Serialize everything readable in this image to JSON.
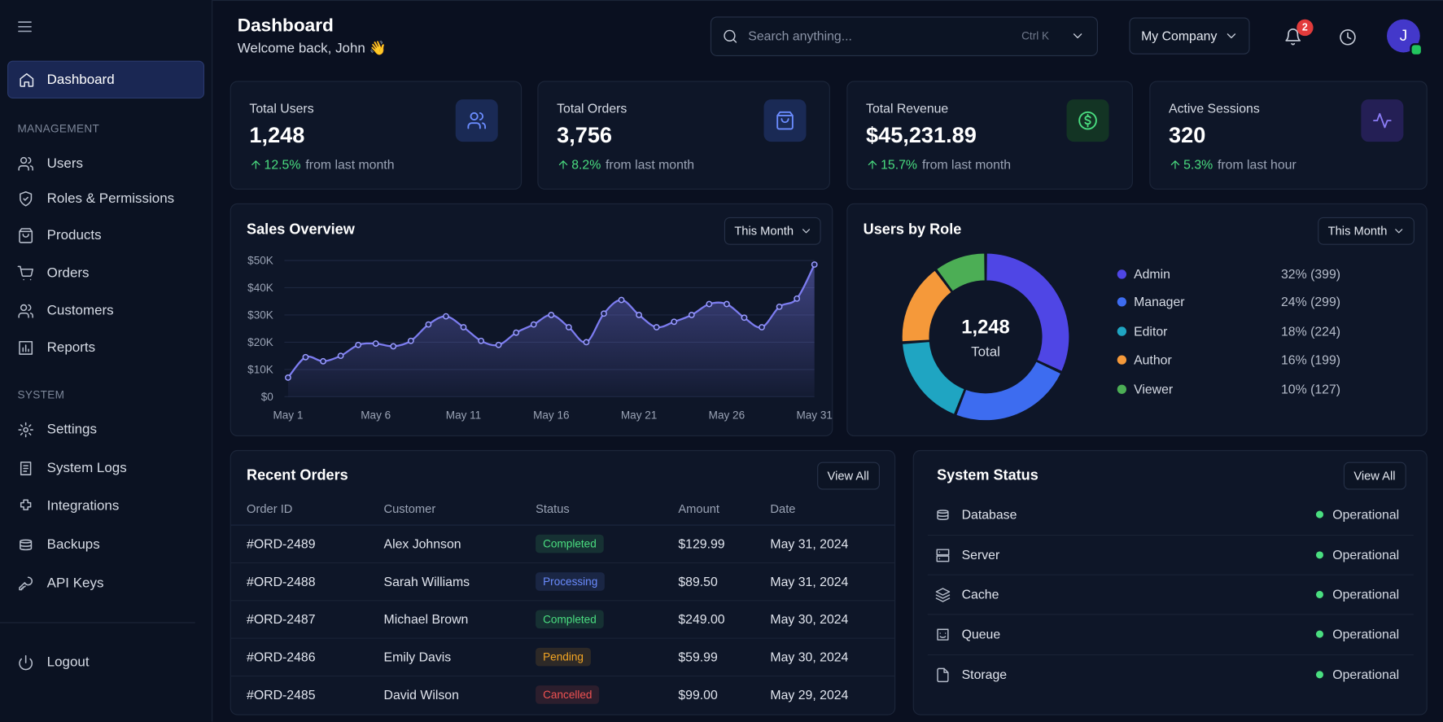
{
  "header": {
    "title": "Dashboard",
    "subtitle": "Welcome back, John 👋",
    "search_placeholder": "Search anything...",
    "shortcut": "Ctrl K",
    "company": "My Company",
    "notifications": "2",
    "avatar": "J"
  },
  "sidebar": {
    "dashboard": "Dashboard",
    "sections": [
      {
        "title": "MANAGEMENT",
        "items": [
          "Users",
          "Roles & Permissions",
          "Products",
          "Orders",
          "Customers",
          "Reports"
        ]
      },
      {
        "title": "SYSTEM",
        "items": [
          "Settings",
          "System Logs",
          "Integrations",
          "Backups",
          "API Keys"
        ]
      }
    ],
    "logout": "Logout"
  },
  "stats": [
    {
      "label": "Total Users",
      "value": "1,248",
      "change": "12.5%",
      "period": "from last month"
    },
    {
      "label": "Total Orders",
      "value": "3,756",
      "change": "8.2%",
      "period": "from last month"
    },
    {
      "label": "Total Revenue",
      "value": "$45,231.89",
      "change": "15.7%",
      "period": "from last month"
    },
    {
      "label": "Active Sessions",
      "value": "320",
      "change": "5.3%",
      "period": "from last hour"
    }
  ],
  "sales_chart": {
    "type": "line",
    "title": "Sales Overview",
    "filter": "This Month",
    "color": "#7c7cf0",
    "grid": true,
    "categories": [
      "May 1",
      null,
      null,
      null,
      null,
      "May 6",
      null,
      null,
      null,
      null,
      "May 11",
      null,
      null,
      null,
      null,
      "May 16",
      null,
      null,
      null,
      null,
      "May 21",
      null,
      null,
      null,
      null,
      "May 26",
      null,
      null,
      null,
      null,
      "May 31"
    ],
    "values": [
      7000,
      14500,
      13000,
      15000,
      19000,
      19500,
      18500,
      20500,
      26500,
      29500,
      25500,
      20500,
      19000,
      23500,
      26500,
      30000,
      25500,
      20000,
      30500,
      35500,
      30000,
      25500,
      27500,
      30000,
      34000,
      34000,
      29000,
      25500,
      33000,
      36000,
      48500
    ],
    "ylim": [
      0,
      50000
    ],
    "yticks": [
      {
        "value": 0,
        "label": "$0"
      },
      {
        "value": 10000,
        "label": "$10K"
      },
      {
        "value": 20000,
        "label": "$20K"
      },
      {
        "value": 30000,
        "label": "$30K"
      },
      {
        "value": 40000,
        "label": "$40K"
      },
      {
        "value": 50000,
        "label": "$50K"
      }
    ]
  },
  "users_chart": {
    "type": "pie",
    "title": "Users by Role",
    "filter": "This Month",
    "center_value": "1,248",
    "center_label": "Total",
    "categories": [
      "Admin",
      "Manager",
      "Editor",
      "Author",
      "Viewer"
    ],
    "values": [
      399,
      299,
      224,
      199,
      127
    ],
    "value_labels": [
      "32% (399)",
      "24% (299)",
      "18% (224)",
      "16% (199)",
      "10% (127)"
    ],
    "colors": [
      "#4f46e5",
      "#3d6cf0",
      "#1fa5c2",
      "#f5993a",
      "#4cae55"
    ]
  },
  "orders": {
    "title": "Recent Orders",
    "button": "View All",
    "columns": [
      "Order ID",
      "Customer",
      "Status",
      "Amount",
      "Date"
    ],
    "rows": [
      {
        "id": "#ORD-2489",
        "customer": "Alex Johnson",
        "status": "Completed",
        "status_color": "#4ade80",
        "amount": "$129.99",
        "date": "May 31, 2024"
      },
      {
        "id": "#ORD-2488",
        "customer": "Sarah Williams",
        "status": "Processing",
        "status_color": "#6b8cff",
        "amount": "$89.50",
        "date": "May 31, 2024"
      },
      {
        "id": "#ORD-2487",
        "customer": "Michael Brown",
        "status": "Completed",
        "status_color": "#4ade80",
        "amount": "$249.00",
        "date": "May 30, 2024"
      },
      {
        "id": "#ORD-2486",
        "customer": "Emily Davis",
        "status": "Pending",
        "status_color": "#f5a623",
        "amount": "$59.99",
        "date": "May 30, 2024"
      },
      {
        "id": "#ORD-2485",
        "customer": "David Wilson",
        "status": "Cancelled",
        "status_color": "#f05252",
        "amount": "$99.00",
        "date": "May 29, 2024"
      }
    ]
  },
  "system_status": {
    "title": "System Status",
    "button": "View All",
    "items": [
      {
        "name": "Database",
        "status": "Operational"
      },
      {
        "name": "Server",
        "status": "Operational"
      },
      {
        "name": "Cache",
        "status": "Operational"
      },
      {
        "name": "Queue",
        "status": "Operational"
      },
      {
        "name": "Storage",
        "status": "Operational"
      }
    ]
  }
}
